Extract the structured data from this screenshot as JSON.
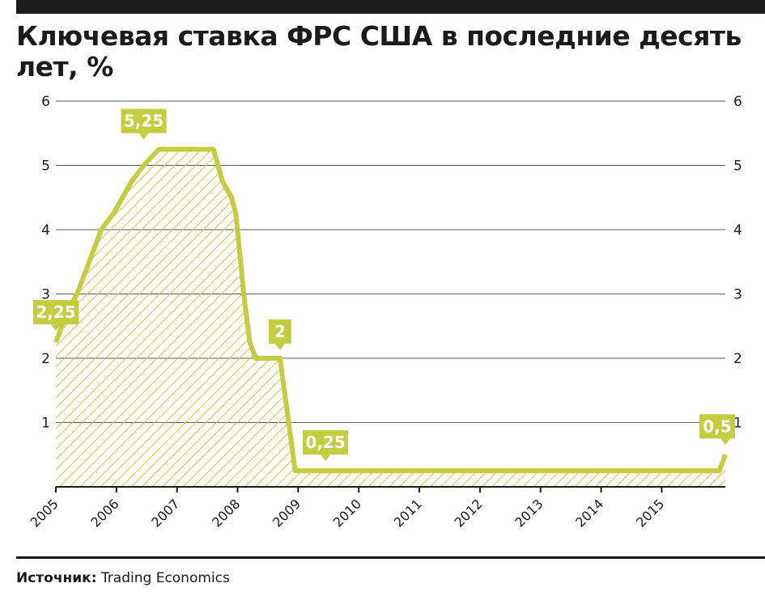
{
  "header": {
    "title": "Ключевая ставка ФРС США в последние десять лет, %"
  },
  "footer": {
    "source_label": "Источник:",
    "source_value": "Trading Economics"
  },
  "colors": {
    "series": "#c5cc3f",
    "grid": "#5a5a5a",
    "text": "#1b1b1b",
    "label_text": "#ffffff"
  },
  "chart_data": {
    "type": "area",
    "title": "Ключевая ставка ФРС США в последние десять лет, %",
    "xlabel": "",
    "ylabel": "",
    "xlim": [
      2005.0,
      2016.05
    ],
    "ylim": [
      0,
      6
    ],
    "y_ticks": [
      "1",
      "2",
      "3",
      "4",
      "5",
      "6"
    ],
    "x_ticks": [
      "2005",
      "2006",
      "2007",
      "2008",
      "2009",
      "2010",
      "2011",
      "2012",
      "2013",
      "2014",
      "2015"
    ],
    "grid": true,
    "fill_pattern": "diagonal-hatch",
    "series": [
      {
        "x": [
          2005.0,
          2005.1,
          2005.2,
          2005.35,
          2005.55,
          2005.75,
          2005.95,
          2006.1,
          2006.25,
          2006.45,
          2006.7,
          2006.9,
          2007.3,
          2007.6,
          2007.75,
          2007.9,
          2007.97,
          2008.05,
          2008.1,
          2008.2,
          2008.3,
          2008.7,
          2008.95,
          2009.0,
          2015.95,
          2016.05
        ],
        "values": [
          2.25,
          2.5,
          2.75,
          3.0,
          3.5,
          4.0,
          4.25,
          4.5,
          4.75,
          5.0,
          5.25,
          5.25,
          5.25,
          5.25,
          4.75,
          4.5,
          4.25,
          3.5,
          3.0,
          2.25,
          2.0,
          2.0,
          0.25,
          0.25,
          0.25,
          0.5
        ]
      }
    ],
    "annotations": [
      {
        "text": "2,25",
        "x": 2005.0,
        "y": 2.25
      },
      {
        "text": "5,25",
        "x": 2006.45,
        "y": 5.25
      },
      {
        "text": "2",
        "x": 2008.7,
        "y": 2.0
      },
      {
        "text": "0,25",
        "x": 2009.45,
        "y": 0.25
      },
      {
        "text": "0,5",
        "x": 2016.05,
        "y": 0.5
      }
    ]
  }
}
